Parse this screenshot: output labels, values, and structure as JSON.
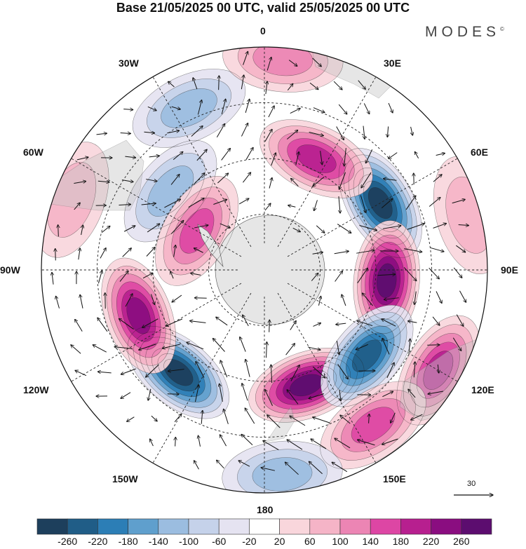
{
  "title": "Base 21/05/2025 00 UTC, valid 25/05/2025 00 UTC",
  "brand": {
    "name": "MODES",
    "mark": "©"
  },
  "longitude_labels": {
    "top": "0",
    "top_right": "30E",
    "right_upper": "60E",
    "right": "90E",
    "right_lower": "120E",
    "bottom_right": "150E",
    "bottom": "180",
    "bottom_left": "150W",
    "left_lower": "120W",
    "left": "90W",
    "left_upper": "60W",
    "top_left": "30W"
  },
  "wind_reference": {
    "value": "30"
  },
  "colorbar": {
    "colors": [
      "#1d3f5c",
      "#205d87",
      "#2c7eb6",
      "#5f9fcd",
      "#9bbde0",
      "#c5d2ea",
      "#e5e3f1",
      "#ffffff",
      "#f9d6dc",
      "#f5b4c7",
      "#ec85b4",
      "#dd46a4",
      "#b71f8f",
      "#8a0d80",
      "#5c0d6f"
    ],
    "ticks": [
      "-260",
      "-220",
      "-180",
      "-140",
      "-100",
      "-60",
      "-20",
      "20",
      "60",
      "100",
      "140",
      "180",
      "220",
      "260"
    ]
  },
  "anomaly_centers": [
    {
      "lon": 60,
      "colat": 0.6,
      "value": -270
    },
    {
      "lon": 95,
      "colat": 0.55,
      "value": 250
    },
    {
      "lon": 160,
      "colat": 0.55,
      "value": 250
    },
    {
      "lon": 220,
      "colat": 0.6,
      "value": -250
    },
    {
      "lon": 250,
      "colat": 0.6,
      "value": 220
    },
    {
      "lon": 130,
      "colat": 0.6,
      "value": -220
    },
    {
      "lon": 25,
      "colat": 0.55,
      "value": 180
    },
    {
      "lon": 310,
      "colat": 0.55,
      "value": -100
    },
    {
      "lon": 335,
      "colat": 0.8,
      "value": -100
    },
    {
      "lon": 300,
      "colat": 0.35,
      "value": 140
    },
    {
      "lon": 120,
      "colat": 0.9,
      "value": 180
    },
    {
      "lon": 145,
      "colat": 0.85,
      "value": 140
    },
    {
      "lon": 175,
      "colat": 0.92,
      "value": -100
    },
    {
      "lon": 5,
      "colat": 0.95,
      "value": 100
    },
    {
      "lon": 290,
      "colat": 0.92,
      "value": 60
    },
    {
      "lon": 75,
      "colat": 0.95,
      "value": 60
    }
  ]
}
